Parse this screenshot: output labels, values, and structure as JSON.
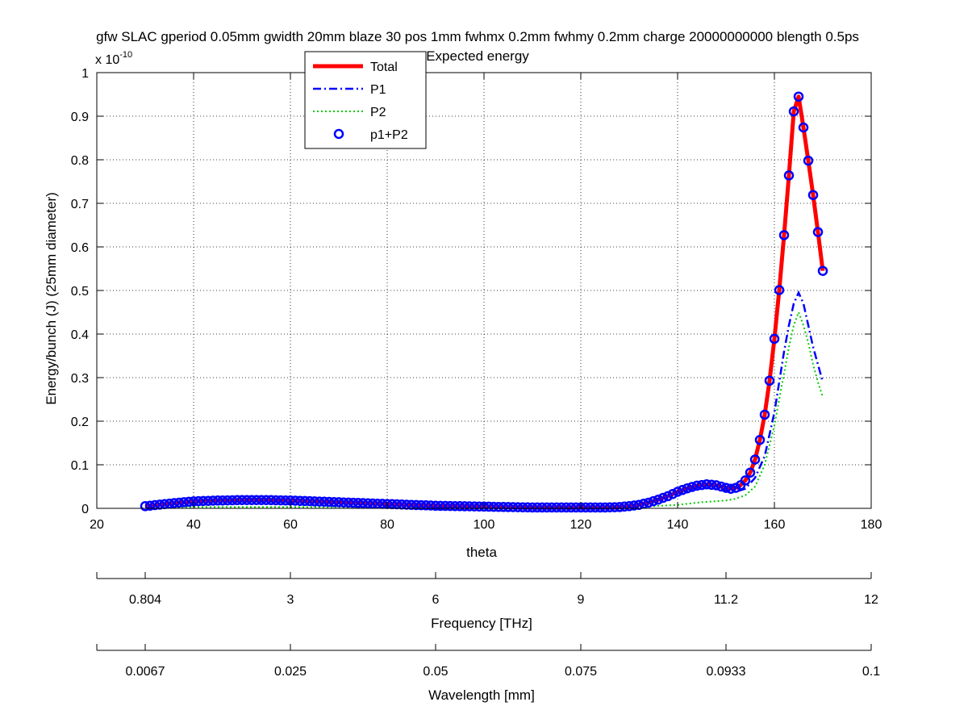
{
  "chart_data": {
    "type": "line",
    "title_line1": "gfw SLAC gperiod 0.05mm gwidth 20mm blaze 30 pos 1mm fwhmx 0.2mm fwhmy 0.2mm charge 20000000000 blength 0.5ps",
    "title_line2": "Expected energy",
    "xlabel": "theta",
    "ylabel": "Energy/bunch (J) (25mm diameter)",
    "y_exponent_base": "x 10",
    "y_exponent_power": "-10",
    "xlim": [
      20,
      180
    ],
    "ylim": [
      0,
      1
    ],
    "x_ticks": [
      20,
      40,
      60,
      80,
      100,
      120,
      140,
      160,
      180
    ],
    "y_ticks": [
      0,
      0.1,
      0.2,
      0.3,
      0.4,
      0.5,
      0.6,
      0.7,
      0.8,
      0.9,
      1
    ],
    "grid": true,
    "legend_position": "top-left",
    "secondary_axes": [
      {
        "label": "Frequency [THz]",
        "ticks": [
          {
            "theta": 30,
            "label": "0.804"
          },
          {
            "theta": 60,
            "label": "3"
          },
          {
            "theta": 90,
            "label": "6"
          },
          {
            "theta": 120,
            "label": "9"
          },
          {
            "theta": 150,
            "label": "11.2"
          },
          {
            "theta": 180,
            "label": "12"
          }
        ]
      },
      {
        "label": "Wavelength [mm]",
        "ticks": [
          {
            "theta": 30,
            "label": "0.0067"
          },
          {
            "theta": 60,
            "label": "0.025"
          },
          {
            "theta": 90,
            "label": "0.05"
          },
          {
            "theta": 120,
            "label": "0.075"
          },
          {
            "theta": 150,
            "label": "0.0933"
          },
          {
            "theta": 180,
            "label": "0.1"
          }
        ]
      }
    ],
    "series": [
      {
        "name": "Total",
        "style": "solid",
        "color": "#ff0000",
        "x": [
          30,
          35,
          40,
          45,
          50,
          55,
          60,
          65,
          70,
          75,
          80,
          85,
          90,
          95,
          100,
          105,
          110,
          115,
          120,
          125,
          128,
          130,
          132,
          134,
          136,
          138,
          140,
          142,
          144,
          146,
          148,
          150,
          151,
          152,
          153,
          154,
          155,
          156,
          157,
          158,
          159,
          160,
          161,
          162,
          163,
          164,
          165,
          166,
          167,
          168,
          169,
          170
        ],
        "y": [
          0.005,
          0.011,
          0.016,
          0.018,
          0.019,
          0.019,
          0.018,
          0.016,
          0.014,
          0.012,
          0.01,
          0.008,
          0.006,
          0.005,
          0.004,
          0.003,
          0.002,
          0.002,
          0.002,
          0.002,
          0.003,
          0.005,
          0.008,
          0.013,
          0.02,
          0.028,
          0.038,
          0.046,
          0.052,
          0.055,
          0.053,
          0.047,
          0.045,
          0.047,
          0.053,
          0.064,
          0.082,
          0.112,
          0.157,
          0.215,
          0.293,
          0.389,
          0.501,
          0.627,
          0.764,
          0.911,
          0.945,
          0.874,
          0.798,
          0.719,
          0.634,
          0.545
        ]
      },
      {
        "name": "P1",
        "style": "dashdot",
        "color": "#0000ff",
        "x": [
          30,
          40,
          50,
          60,
          70,
          80,
          90,
          100,
          110,
          120,
          128,
          132,
          136,
          140,
          144,
          146,
          148,
          150,
          152,
          154,
          156,
          158,
          160,
          161,
          162,
          163,
          164,
          165,
          166,
          167,
          168,
          169,
          170
        ],
        "y": [
          0.004,
          0.014,
          0.016,
          0.015,
          0.012,
          0.009,
          0.006,
          0.004,
          0.002,
          0.002,
          0.003,
          0.007,
          0.018,
          0.034,
          0.048,
          0.052,
          0.05,
          0.042,
          0.038,
          0.045,
          0.07,
          0.12,
          0.22,
          0.29,
          0.36,
          0.42,
          0.47,
          0.495,
          0.47,
          0.42,
          0.37,
          0.33,
          0.29
        ]
      },
      {
        "name": "P2",
        "style": "dotted",
        "color": "#00cc00",
        "x": [
          30,
          40,
          50,
          60,
          70,
          80,
          90,
          100,
          110,
          120,
          130,
          140,
          145,
          150,
          152,
          154,
          156,
          158,
          160,
          161,
          162,
          163,
          164,
          165,
          166,
          167,
          168,
          169,
          170
        ],
        "y": [
          0.001,
          0.003,
          0.003,
          0.003,
          0.003,
          0.002,
          0.002,
          0.001,
          0.001,
          0.001,
          0.002,
          0.008,
          0.014,
          0.018,
          0.022,
          0.03,
          0.05,
          0.1,
          0.19,
          0.25,
          0.31,
          0.37,
          0.42,
          0.45,
          0.42,
          0.38,
          0.33,
          0.29,
          0.255
        ]
      },
      {
        "name": "p1+P2",
        "style": "markers",
        "color": "#0000ff",
        "marker_edge_color": "#0000ff",
        "x_start": 30,
        "x_end": 170,
        "x_step": 1
      }
    ]
  }
}
